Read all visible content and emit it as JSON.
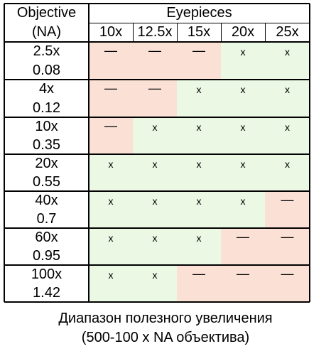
{
  "table": {
    "objective_header": "Objective",
    "na_header": "(NA)",
    "eyepieces_header": "Eyepieces",
    "eyepieces": [
      "10x",
      "12.5x",
      "15x",
      "20x",
      "25x"
    ],
    "useful_mark": "x",
    "empty_mark": "—",
    "colors": {
      "useful": "#eaf8e4",
      "empty": "#fbe0d6",
      "grid": "#000000"
    },
    "rows": [
      {
        "objective": "2.5x",
        "na": "0.08",
        "marks": [
          "—",
          "—",
          "—",
          "x",
          "x"
        ]
      },
      {
        "objective": "4x",
        "na": "0.12",
        "marks": [
          "—",
          "—",
          "x",
          "x",
          "x"
        ]
      },
      {
        "objective": "10x",
        "na": "0.35",
        "marks": [
          "—",
          "x",
          "x",
          "x",
          "x"
        ]
      },
      {
        "objective": "20x",
        "na": "0.55",
        "marks": [
          "x",
          "x",
          "x",
          "x",
          "x"
        ]
      },
      {
        "objective": "40x",
        "na": "0.7",
        "marks": [
          "x",
          "x",
          "x",
          "x",
          "—"
        ]
      },
      {
        "objective": "60x",
        "na": "0.95",
        "marks": [
          "x",
          "x",
          "x",
          "—",
          "—"
        ]
      },
      {
        "objective": "100x",
        "na": "1.42",
        "marks": [
          "x",
          "x",
          "—",
          "—",
          "—"
        ]
      }
    ]
  },
  "caption": {
    "line1": "Диапазон полезного увеличения",
    "line2": "(500-100 x NA объектива)"
  }
}
